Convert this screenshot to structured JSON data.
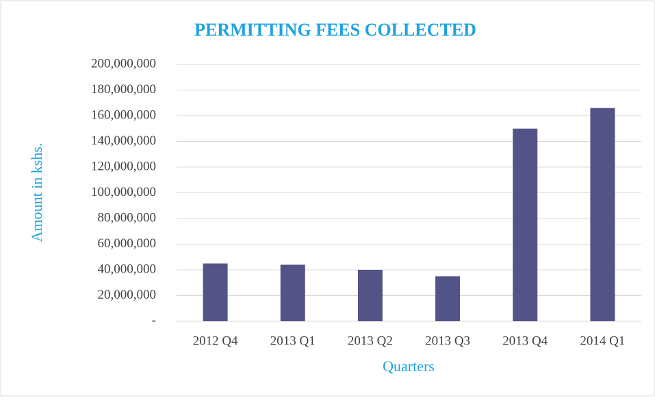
{
  "chart_data": {
    "type": "bar",
    "title": "PERMITTING FEES COLLECTED",
    "x_label": "Quarters",
    "y_label": "Amount in kshs.",
    "categories": [
      "2012 Q4",
      "2013 Q1",
      "2013 Q2",
      "2013 Q3",
      "2013 Q4",
      "2014 Q1"
    ],
    "values": [
      45000000,
      44000000,
      40000000,
      35000000,
      150000000,
      166000000
    ],
    "color": "#535388",
    "ylim": [
      0,
      200000000
    ],
    "yticks": [
      {
        "value": 0,
        "label": "-"
      },
      {
        "value": 20000000,
        "label": "20,000,000"
      },
      {
        "value": 40000000,
        "label": "40,000,000"
      },
      {
        "value": 60000000,
        "label": "60,000,000"
      },
      {
        "value": 80000000,
        "label": "80,000,000"
      },
      {
        "value": 100000000,
        "label": "100,000,000"
      },
      {
        "value": 120000000,
        "label": "120,000,000"
      },
      {
        "value": 140000000,
        "label": "140,000,000"
      },
      {
        "value": 160000000,
        "label": "160,000,000"
      },
      {
        "value": 180000000,
        "label": "180,000,000"
      },
      {
        "value": 200000000,
        "label": "200,000,000"
      }
    ],
    "grid": true
  }
}
